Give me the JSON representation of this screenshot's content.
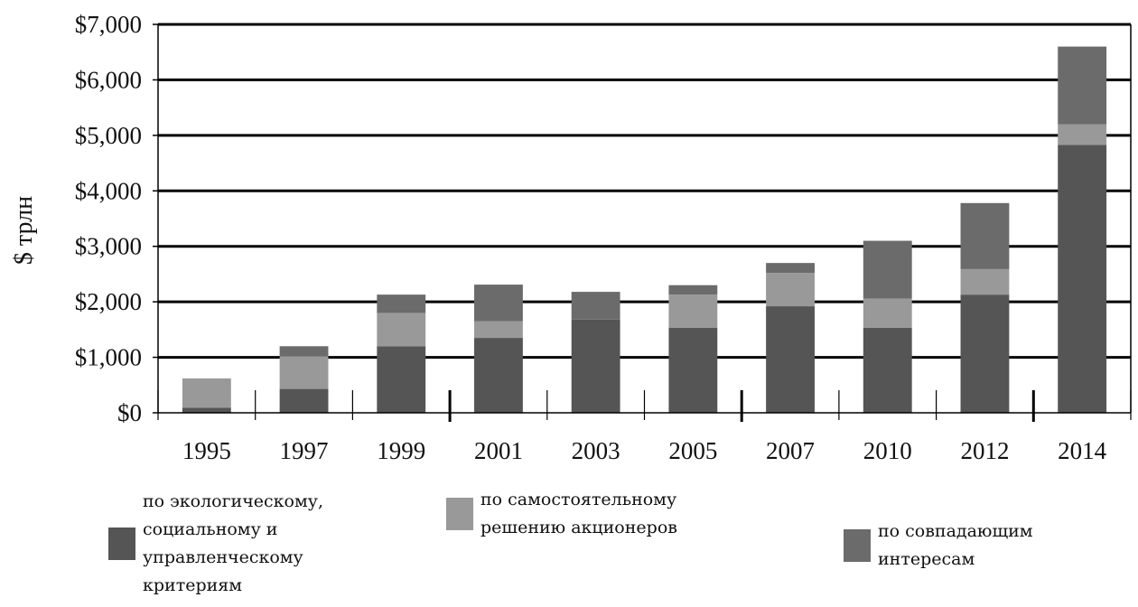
{
  "chart_data": {
    "type": "bar",
    "stacked": true,
    "categories": [
      "1995",
      "1997",
      "1999",
      "2001",
      "2003",
      "2005",
      "2007",
      "2010",
      "2012",
      "2014"
    ],
    "series": [
      {
        "name": "по экологическому, социальному и управленческому критериям",
        "color": "#555555",
        "values": [
          90,
          430,
          1200,
          1350,
          1680,
          1530,
          1920,
          1530,
          2130,
          4830
        ]
      },
      {
        "name": "по самостоятельному решению акционеров",
        "color": "#999999",
        "values": [
          530,
          590,
          600,
          300,
          0,
          600,
          600,
          530,
          460,
          370
        ]
      },
      {
        "name": "по совпадающим интересам",
        "color": "#6b6b6b",
        "values": [
          0,
          180,
          330,
          660,
          500,
          170,
          180,
          1040,
          1190,
          1400
        ]
      }
    ],
    "ylim": [
      0,
      7000
    ],
    "yticks": [
      "$0",
      "$1,000",
      "$2,000",
      "$3,000",
      "$4,000",
      "$5,000",
      "$6,000",
      "$7,000"
    ],
    "ylabel": "$ трлн",
    "xlabel": "",
    "title": "",
    "grid": true,
    "legend_position": "bottom"
  },
  "legend": {
    "items": [
      {
        "label": "по экологическому,\nсоциальному и\nуправленческому\nкритериям",
        "color": "#555555"
      },
      {
        "label": "по самостоятельному\nрешению акционеров",
        "color": "#999999"
      },
      {
        "label": "по совпадающим\nинтересам",
        "color": "#6b6b6b"
      }
    ]
  }
}
